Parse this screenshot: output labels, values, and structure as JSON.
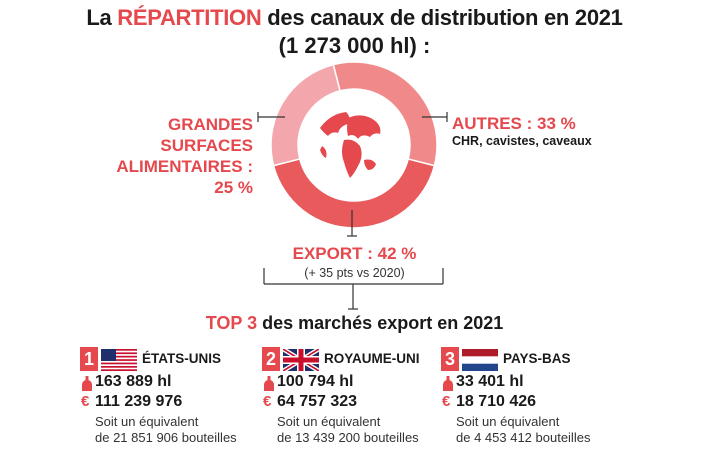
{
  "header": {
    "title_pre": "La",
    "title_accent": "RÉPARTITION",
    "title_post": "des canaux de distribution en 2021",
    "subtitle": "(1 273 000 hl) :"
  },
  "colors": {
    "accent": "#e5484d",
    "slice_export": "#e85a5c",
    "slice_autres": "#f08a8a",
    "slice_gsa": "#f3a6ab"
  },
  "chart_data": {
    "type": "pie",
    "title": "La RÉPARTITION des canaux de distribution en 2021 (1 273 000 hl) :",
    "slices": [
      {
        "label": "EXPORT",
        "value": 42,
        "color": "#e85a5c"
      },
      {
        "label": "GRANDES SURFACES ALIMENTAIRES",
        "value": 25,
        "color": "#f3a6ab"
      },
      {
        "label": "AUTRES",
        "value": 33,
        "color": "#f08a8a"
      }
    ],
    "unit": "%",
    "donut": true,
    "center_icon": "globe-icon"
  },
  "labels": {
    "gsa_lines": [
      "GRANDES",
      "SURFACES",
      "ALIMENTAIRES :",
      "25 %"
    ],
    "autres_title": "AUTRES : 33 %",
    "autres_sub": "CHR, cavistes, caveaux",
    "export_title": "EXPORT : 42 %",
    "export_sub": "(+ 35 pts vs 2020)"
  },
  "top3": {
    "title_accent": "TOP 3",
    "title_post": "des marchés export en 2021",
    "markets": [
      {
        "rank": "1",
        "flag": "usa-flag-icon",
        "country": "ÉTATS-UNIS",
        "volume": "163 889 hl",
        "value": "111 239 976",
        "note1": "Soit un équivalent",
        "note2": "de 21 851 906 bouteilles"
      },
      {
        "rank": "2",
        "flag": "uk-flag-icon",
        "country": "ROYAUME-UNI",
        "volume": "100 794 hl",
        "value": "64 757 323",
        "note1": "Soit un équivalent",
        "note2": "de 13 439 200 bouteilles"
      },
      {
        "rank": "3",
        "flag": "netherlands-flag-icon",
        "country": "PAYS-BAS",
        "volume": "33 401 hl",
        "value": "18 710 426",
        "note1": "Soit un équivalent",
        "note2": "de 4 453 412 bouteilles"
      }
    ],
    "euro_symbol": "€"
  }
}
